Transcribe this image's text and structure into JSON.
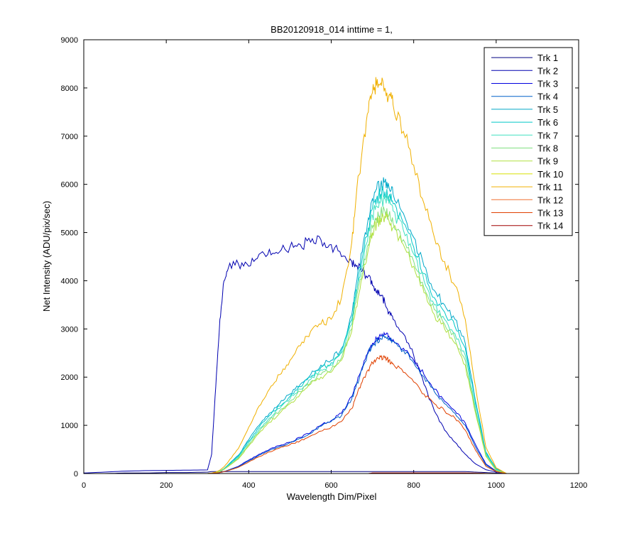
{
  "chart_data": {
    "type": "line",
    "title": "BB20120918_014 inttime = 1,",
    "xlabel": "Wavelength Dim/Pixel",
    "ylabel": "Net Intensity (ADU/pix/sec)",
    "xlim": [
      0,
      1200
    ],
    "ylim": [
      0,
      9000
    ],
    "xticks": [
      "0",
      "200",
      "400",
      "600",
      "800",
      "1000",
      "1200"
    ],
    "yticks": [
      "0",
      "1000",
      "2000",
      "3000",
      "4000",
      "5000",
      "6000",
      "7000",
      "8000",
      "9000"
    ],
    "legend_position": "top-right",
    "grid": false,
    "x": [
      0,
      50,
      100,
      150,
      200,
      250,
      300,
      310,
      320,
      330,
      340,
      350,
      375,
      400,
      425,
      450,
      475,
      500,
      525,
      550,
      575,
      600,
      625,
      650,
      660,
      675,
      690,
      700,
      710,
      720,
      730,
      740,
      750,
      775,
      800,
      825,
      850,
      875,
      900,
      925,
      950,
      975,
      1000,
      1025
    ],
    "series": [
      {
        "name": "Trk 1",
        "color": "#000080",
        "values": [
          0,
          0,
          10,
          10,
          20,
          20,
          30,
          40,
          40,
          40,
          40,
          40,
          40,
          40,
          40,
          40,
          40,
          40,
          40,
          40,
          40,
          40,
          40,
          40,
          40,
          40,
          40,
          40,
          40,
          40,
          40,
          40,
          40,
          40,
          40,
          40,
          40,
          40,
          40,
          40,
          30,
          20,
          10,
          0
        ]
      },
      {
        "name": "Trk 2",
        "color": "#0000b0",
        "values": [
          10,
          30,
          50,
          60,
          65,
          70,
          75,
          400,
          1800,
          3200,
          4000,
          4250,
          4350,
          4300,
          4550,
          4650,
          4600,
          4700,
          4750,
          4800,
          4850,
          4750,
          4500,
          4400,
          4300,
          4200,
          4100,
          3900,
          3750,
          3700,
          3550,
          3350,
          3200,
          2900,
          2450,
          1850,
          1300,
          900,
          650,
          400,
          200,
          80,
          30,
          0
        ]
      },
      {
        "name": "Trk 3",
        "color": "#0000e0",
        "values": [
          0,
          0,
          0,
          0,
          0,
          0,
          0,
          5,
          10,
          20,
          40,
          70,
          150,
          280,
          400,
          500,
          580,
          650,
          750,
          850,
          1000,
          1100,
          1250,
          1600,
          1850,
          2200,
          2550,
          2700,
          2800,
          2850,
          2880,
          2850,
          2780,
          2600,
          2350,
          2050,
          1750,
          1500,
          1300,
          1050,
          600,
          200,
          50,
          0
        ]
      },
      {
        "name": "Trk 4",
        "color": "#0060c8",
        "values": [
          0,
          0,
          0,
          0,
          0,
          0,
          0,
          5,
          10,
          20,
          40,
          70,
          140,
          260,
          380,
          480,
          560,
          640,
          730,
          830,
          980,
          1080,
          1200,
          1550,
          1800,
          2150,
          2500,
          2650,
          2750,
          2800,
          2820,
          2800,
          2740,
          2560,
          2300,
          2000,
          1700,
          1450,
          1250,
          1000,
          550,
          180,
          40,
          0
        ]
      },
      {
        "name": "Trk 5",
        "color": "#00a8c8",
        "values": [
          0,
          0,
          0,
          0,
          0,
          0,
          0,
          5,
          20,
          50,
          100,
          180,
          380,
          700,
          1000,
          1250,
          1450,
          1650,
          1850,
          2050,
          2250,
          2350,
          2600,
          3300,
          3900,
          4600,
          5300,
          5700,
          5900,
          6000,
          6050,
          5950,
          5800,
          5400,
          4900,
          4300,
          3800,
          3500,
          3200,
          2700,
          1500,
          450,
          100,
          0
        ]
      },
      {
        "name": "Trk 6",
        "color": "#00c8c8",
        "values": [
          0,
          0,
          0,
          0,
          0,
          0,
          0,
          5,
          20,
          50,
          100,
          170,
          360,
          670,
          960,
          1200,
          1400,
          1600,
          1800,
          2000,
          2200,
          2300,
          2550,
          3200,
          3800,
          4450,
          5100,
          5500,
          5700,
          5800,
          5850,
          5750,
          5600,
          5200,
          4700,
          4150,
          3650,
          3350,
          3050,
          2600,
          1450,
          430,
          90,
          0
        ]
      },
      {
        "name": "Trk 7",
        "color": "#40e0c0",
        "values": [
          0,
          0,
          0,
          0,
          0,
          0,
          0,
          5,
          20,
          45,
          90,
          160,
          340,
          640,
          920,
          1150,
          1350,
          1550,
          1750,
          1950,
          2150,
          2250,
          2500,
          3100,
          3700,
          4300,
          4950,
          5350,
          5550,
          5650,
          5700,
          5600,
          5450,
          5050,
          4550,
          4000,
          3500,
          3200,
          2900,
          2450,
          1350,
          400,
          80,
          0
        ]
      },
      {
        "name": "Trk 8",
        "color": "#80e080",
        "values": [
          0,
          0,
          0,
          0,
          0,
          0,
          0,
          5,
          20,
          45,
          90,
          150,
          320,
          600,
          870,
          1100,
          1300,
          1500,
          1700,
          1900,
          2050,
          2150,
          2400,
          3000,
          3550,
          4150,
          4750,
          5100,
          5300,
          5400,
          5450,
          5350,
          5200,
          4850,
          4400,
          3850,
          3400,
          3100,
          2800,
          2350,
          1300,
          380,
          70,
          0
        ]
      },
      {
        "name": "Trk 9",
        "color": "#b0e040",
        "values": [
          0,
          0,
          0,
          0,
          0,
          0,
          0,
          5,
          20,
          40,
          85,
          145,
          300,
          570,
          840,
          1060,
          1250,
          1450,
          1650,
          1850,
          2000,
          2100,
          2350,
          2950,
          3450,
          4050,
          4650,
          5000,
          5200,
          5300,
          5350,
          5250,
          5100,
          4750,
          4300,
          3750,
          3300,
          3000,
          2700,
          2250,
          1250,
          360,
          60,
          0
        ]
      },
      {
        "name": "Trk 10",
        "color": "#d8e000",
        "values": [
          0,
          0,
          0,
          0,
          0,
          0,
          0,
          0,
          0,
          0,
          0,
          0,
          0,
          0,
          0,
          0,
          0,
          0,
          0,
          0,
          0,
          0,
          0,
          0,
          0,
          0,
          0,
          0,
          0,
          0,
          0,
          0,
          0,
          0,
          0,
          0,
          0,
          0,
          0,
          0,
          0,
          0,
          0,
          0
        ]
      },
      {
        "name": "Trk 11",
        "color": "#f0b000",
        "values": [
          0,
          0,
          0,
          0,
          0,
          0,
          0,
          10,
          30,
          70,
          140,
          240,
          520,
          960,
          1400,
          1750,
          2050,
          2350,
          2650,
          2950,
          3100,
          3200,
          3650,
          4800,
          5700,
          6700,
          7500,
          7900,
          8050,
          8100,
          8000,
          7850,
          7650,
          7100,
          6400,
          5600,
          4900,
          4400,
          3900,
          3200,
          1800,
          550,
          120,
          0
        ]
      },
      {
        "name": "Trk 12",
        "color": "#f07030",
        "values": [
          0,
          0,
          0,
          0,
          0,
          0,
          0,
          0,
          0,
          0,
          0,
          0,
          0,
          0,
          0,
          0,
          0,
          0,
          0,
          0,
          0,
          0,
          0,
          0,
          0,
          0,
          0,
          10,
          10,
          10,
          10,
          10,
          10,
          10,
          10,
          10,
          10,
          10,
          10,
          10,
          10,
          5,
          0,
          0
        ]
      },
      {
        "name": "Trk 13",
        "color": "#e04000",
        "values": [
          0,
          0,
          0,
          0,
          0,
          0,
          0,
          5,
          10,
          20,
          40,
          60,
          130,
          240,
          350,
          450,
          530,
          600,
          680,
          780,
          880,
          960,
          1080,
          1350,
          1600,
          1900,
          2150,
          2300,
          2380,
          2420,
          2400,
          2350,
          2280,
          2100,
          1900,
          1650,
          1450,
          1300,
          1150,
          900,
          480,
          150,
          40,
          0
        ]
      },
      {
        "name": "Trk 14",
        "color": "#a00000",
        "values": [
          0,
          0,
          0,
          0,
          0,
          0,
          0,
          0,
          0,
          0,
          0,
          0,
          0,
          0,
          0,
          0,
          0,
          0,
          0,
          0,
          0,
          0,
          0,
          0,
          0,
          0,
          0,
          10,
          10,
          10,
          10,
          10,
          10,
          10,
          10,
          10,
          10,
          10,
          10,
          10,
          5,
          0,
          0,
          0
        ]
      }
    ]
  }
}
